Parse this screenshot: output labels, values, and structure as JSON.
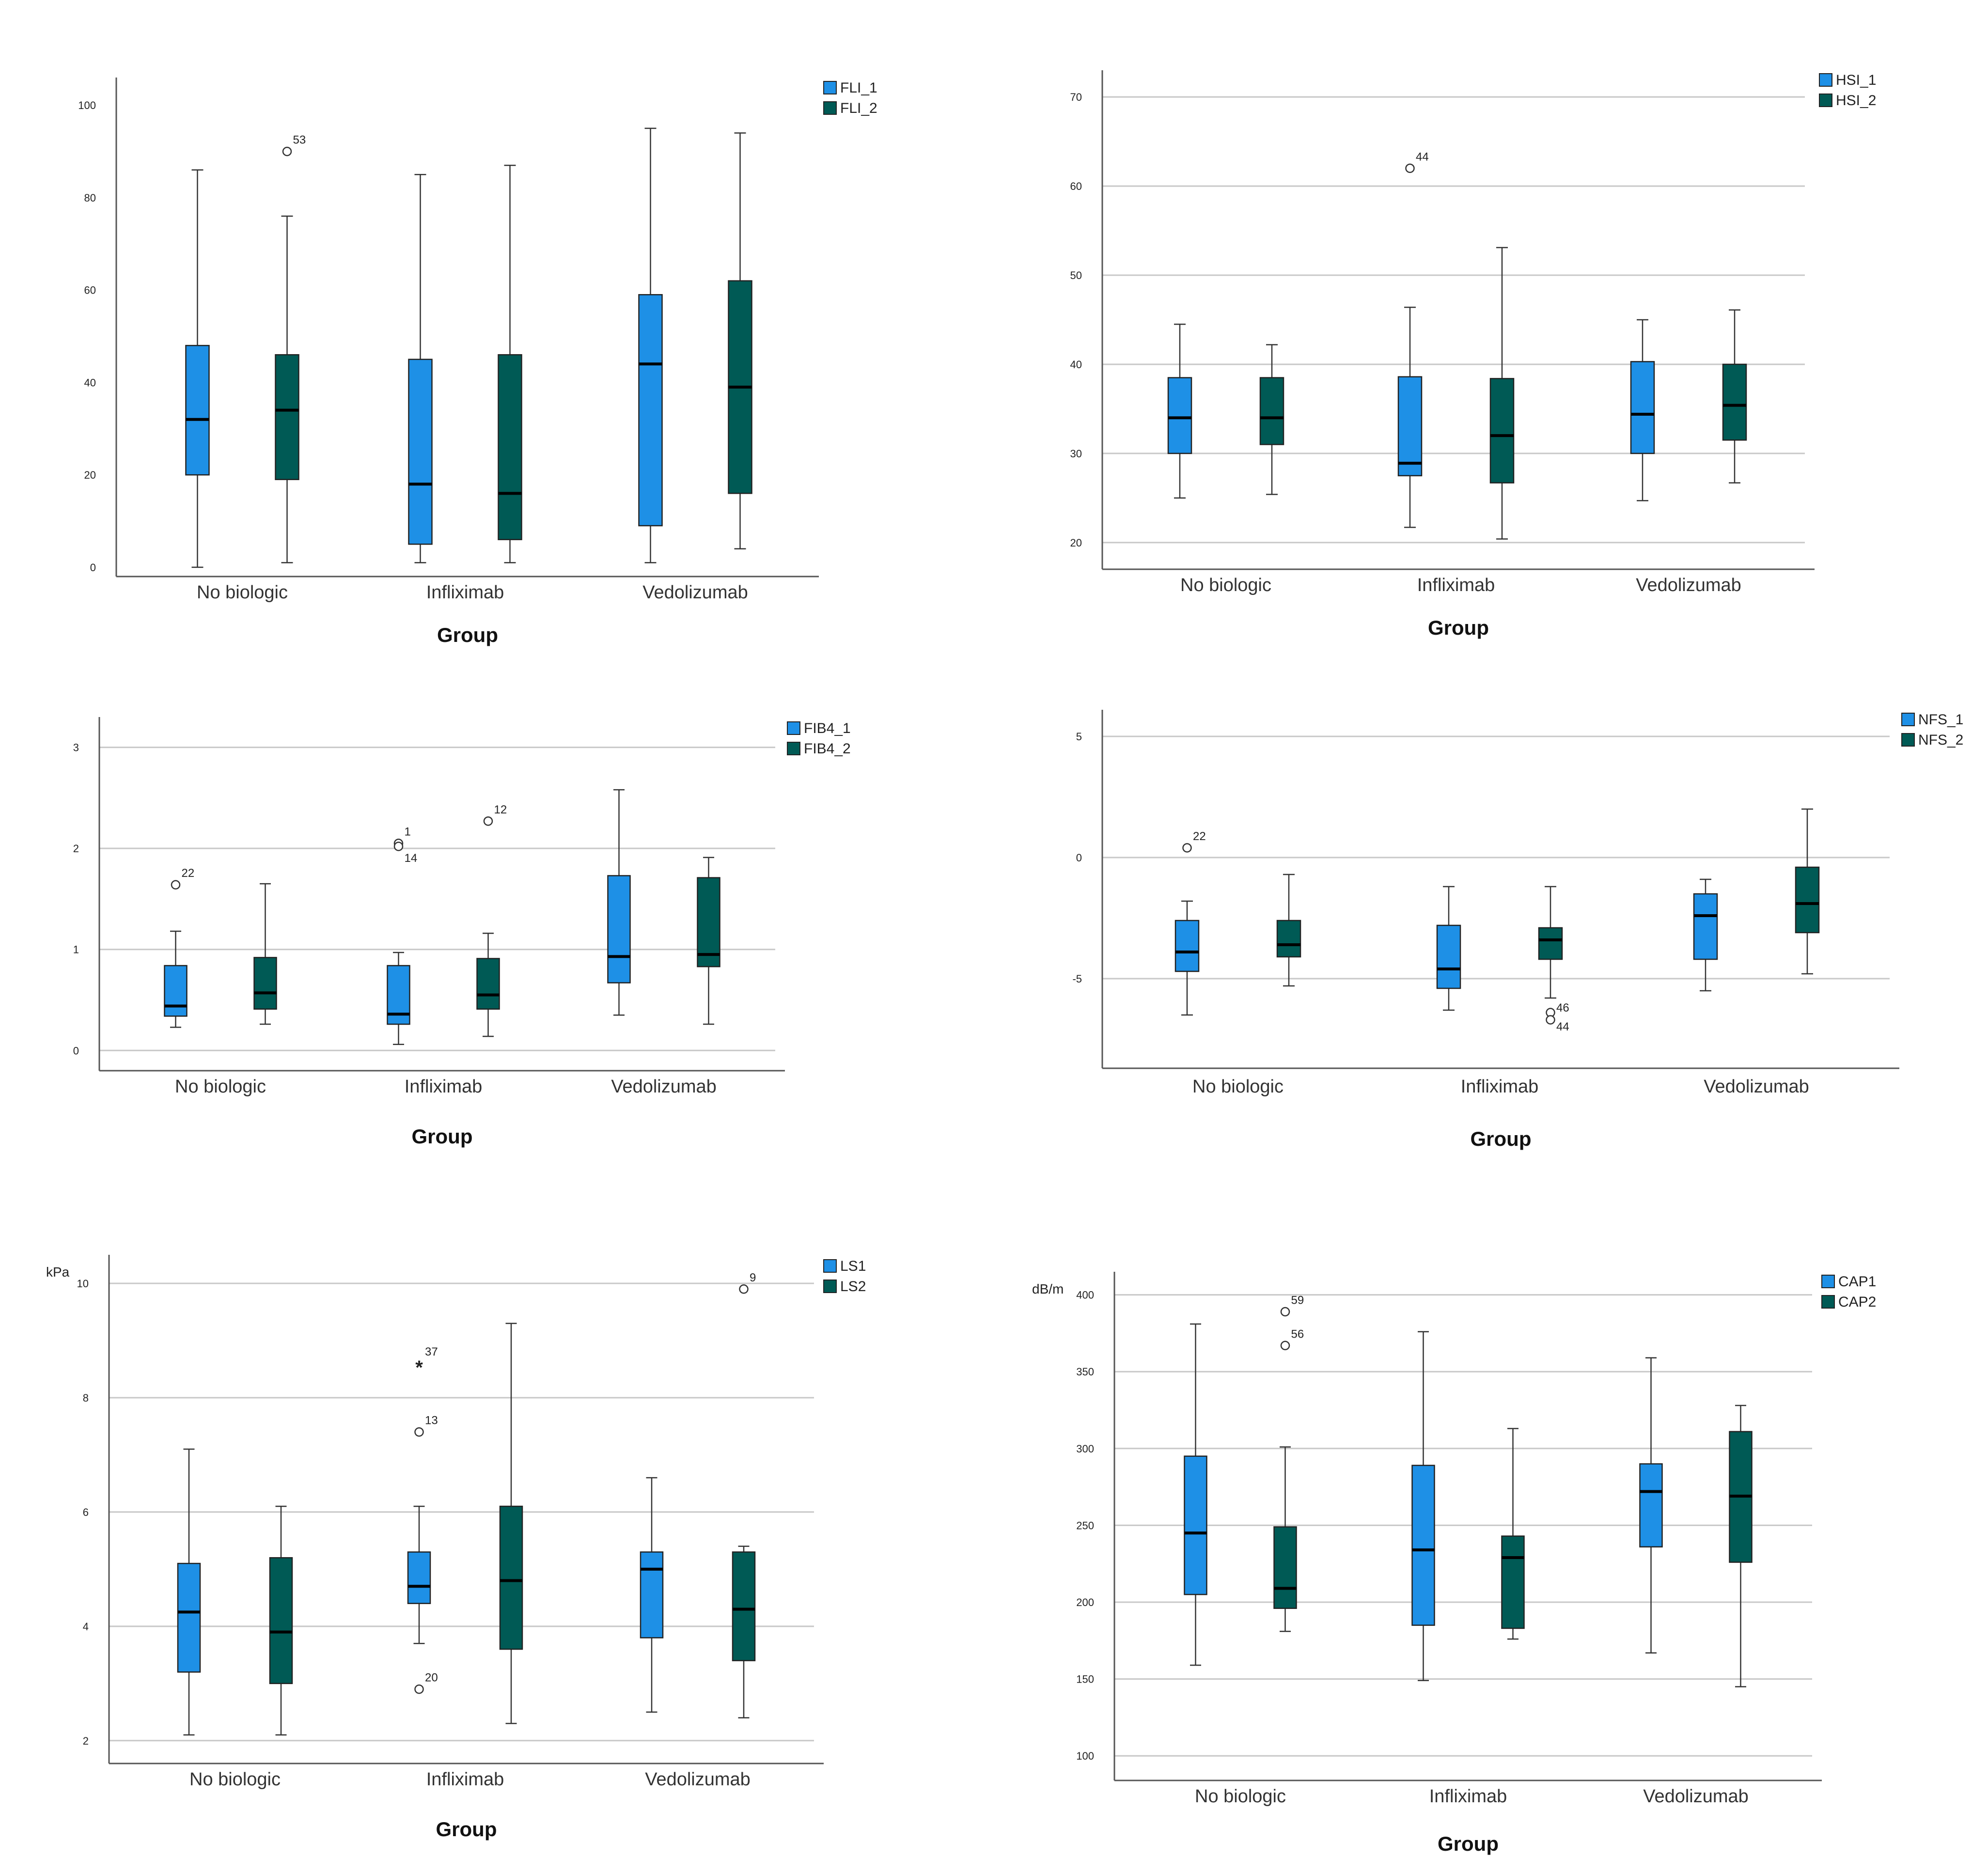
{
  "colors": {
    "series1": "#1e90e6",
    "series2": "#005a55",
    "grid": "#c8c8c8",
    "axis": "#555555"
  },
  "chart_data": [
    {
      "type": "boxplot",
      "xlabel": "Group",
      "ylabel": "",
      "categories": [
        "No biologic",
        "Infliximab",
        "Vedolizumab"
      ],
      "ylim": [
        -2,
        106
      ],
      "ticks": [
        0,
        20,
        40,
        60,
        80,
        100
      ],
      "grid": false,
      "legend_placement": "top-right",
      "series": [
        {
          "name": "FLI_1",
          "boxes": [
            {
              "min": 0,
              "q1": 20,
              "median": 32,
              "q3": 48,
              "max": 86,
              "outliers": []
            },
            {
              "min": 1,
              "q1": 5,
              "median": 18,
              "q3": 45,
              "max": 85,
              "outliers": []
            },
            {
              "min": 1,
              "q1": 9,
              "median": 44,
              "q3": 59,
              "max": 95,
              "outliers": []
            }
          ]
        },
        {
          "name": "FLI_2",
          "boxes": [
            {
              "min": 1,
              "q1": 19,
              "median": 34,
              "q3": 46,
              "max": 76,
              "outliers": [
                {
                  "value": 90,
                  "label": "53",
                  "marker": "circle"
                }
              ]
            },
            {
              "min": 1,
              "q1": 6,
              "median": 16,
              "q3": 46,
              "max": 87,
              "outliers": []
            },
            {
              "min": 4,
              "q1": 16,
              "median": 39,
              "q3": 62,
              "max": 94,
              "outliers": []
            }
          ]
        }
      ]
    },
    {
      "type": "boxplot",
      "xlabel": "Group",
      "ylabel": "",
      "categories": [
        "No biologic",
        "Infliximab",
        "Vedolizumab"
      ],
      "ylim": [
        17,
        73
      ],
      "ticks": [
        20,
        30,
        40,
        50,
        60,
        70
      ],
      "grid": true,
      "legend_placement": "top-right",
      "series": [
        {
          "name": "HSI_1",
          "boxes": [
            {
              "min": 25,
              "q1": 30,
              "median": 34,
              "q3": 38.5,
              "max": 44.5,
              "outliers": []
            },
            {
              "min": 21.7,
              "q1": 27.5,
              "median": 28.9,
              "q3": 38.6,
              "max": 46.4,
              "outliers": [
                {
                  "value": 62,
                  "label": "44",
                  "marker": "circle"
                }
              ]
            },
            {
              "min": 24.7,
              "q1": 30,
              "median": 34.4,
              "q3": 40.3,
              "max": 45,
              "outliers": []
            }
          ]
        },
        {
          "name": "HSI_2",
          "boxes": [
            {
              "min": 25.4,
              "q1": 31,
              "median": 34,
              "q3": 38.5,
              "max": 42.2,
              "outliers": []
            },
            {
              "min": 20.4,
              "q1": 26.7,
              "median": 32,
              "q3": 38.4,
              "max": 53.1,
              "outliers": []
            },
            {
              "min": 26.7,
              "q1": 31.5,
              "median": 35.4,
              "q3": 40,
              "max": 46.1,
              "outliers": []
            }
          ]
        }
      ]
    },
    {
      "type": "boxplot",
      "xlabel": "Group",
      "ylabel": "",
      "categories": [
        "No biologic",
        "Infliximab",
        "Vedolizumab"
      ],
      "ylim": [
        -0.2,
        3.3
      ],
      "ticks": [
        0,
        1,
        2,
        3
      ],
      "grid": true,
      "legend_placement": "top-right",
      "series": [
        {
          "name": "FIB4_1",
          "boxes": [
            {
              "min": 0.23,
              "q1": 0.34,
              "median": 0.44,
              "q3": 0.84,
              "max": 1.18,
              "outliers": [
                {
                  "value": 1.64,
                  "label": "22",
                  "marker": "circle"
                }
              ]
            },
            {
              "min": 0.06,
              "q1": 0.26,
              "median": 0.36,
              "q3": 0.84,
              "max": 0.97,
              "outliers": [
                {
                  "value": 2.05,
                  "label": "1",
                  "marker": "circle"
                },
                {
                  "value": 2.02,
                  "label": "14",
                  "marker": "circle"
                }
              ]
            },
            {
              "min": 0.35,
              "q1": 0.67,
              "median": 0.93,
              "q3": 1.73,
              "max": 2.58,
              "outliers": []
            }
          ]
        },
        {
          "name": "FIB4_2",
          "boxes": [
            {
              "min": 0.26,
              "q1": 0.41,
              "median": 0.57,
              "q3": 0.92,
              "max": 1.65,
              "outliers": []
            },
            {
              "min": 0.14,
              "q1": 0.41,
              "median": 0.55,
              "q3": 0.91,
              "max": 1.16,
              "outliers": [
                {
                  "value": 2.27,
                  "label": "12",
                  "marker": "circle"
                }
              ]
            },
            {
              "min": 0.26,
              "q1": 0.83,
              "median": 0.95,
              "q3": 1.71,
              "max": 1.91,
              "outliers": []
            }
          ]
        }
      ]
    },
    {
      "type": "boxplot",
      "xlabel": "Group",
      "ylabel": "",
      "categories": [
        "No biologic",
        "Infliximab",
        "Vedolizumab"
      ],
      "ylim": [
        -8.7,
        6.1
      ],
      "ticks": [
        -5,
        0,
        5
      ],
      "tick_labels": [
        "-5",
        "0",
        "5"
      ],
      "grid": true,
      "legend_placement": "top-right",
      "series": [
        {
          "name": "NFS_1",
          "boxes": [
            {
              "min": -6.5,
              "q1": -4.7,
              "median": -3.9,
              "q3": -2.6,
              "max": -1.8,
              "outliers": [
                {
                  "value": 0.4,
                  "label": "22",
                  "marker": "circle"
                }
              ]
            },
            {
              "min": -6.3,
              "q1": -5.4,
              "median": -4.6,
              "q3": -2.8,
              "max": -1.2,
              "outliers": []
            },
            {
              "min": -5.5,
              "q1": -4.2,
              "median": -2.4,
              "q3": -1.5,
              "max": -0.9,
              "outliers": []
            }
          ]
        },
        {
          "name": "NFS_2",
          "boxes": [
            {
              "min": -5.3,
              "q1": -4.1,
              "median": -3.6,
              "q3": -2.6,
              "max": -0.7,
              "outliers": []
            },
            {
              "min": -5.8,
              "q1": -4.2,
              "median": -3.4,
              "q3": -2.9,
              "max": -1.2,
              "outliers": [
                {
                  "value": -6.4,
                  "label": "46",
                  "marker": "circle"
                },
                {
                  "value": -6.7,
                  "label": "44",
                  "marker": "circle"
                }
              ]
            },
            {
              "min": -4.8,
              "q1": -3.1,
              "median": -1.9,
              "q3": -0.4,
              "max": 2.0,
              "outliers": []
            }
          ]
        }
      ]
    },
    {
      "type": "boxplot",
      "xlabel": "Group",
      "ylabel": "kPa",
      "categories": [
        "No biologic",
        "Infliximab",
        "Vedolizumab"
      ],
      "ylim": [
        1.6,
        10.5
      ],
      "ticks": [
        2,
        4,
        6,
        8,
        10
      ],
      "grid": true,
      "legend_placement": "top-right",
      "series": [
        {
          "name": "LS1",
          "boxes": [
            {
              "min": 2.1,
              "q1": 3.2,
              "median": 4.25,
              "q3": 5.1,
              "max": 7.1,
              "outliers": []
            },
            {
              "min": 3.7,
              "q1": 4.4,
              "median": 4.7,
              "q3": 5.3,
              "max": 6.1,
              "outliers": [
                {
                  "value": 8.6,
                  "label": "37",
                  "marker": "star"
                },
                {
                  "value": 7.4,
                  "label": "13",
                  "marker": "circle"
                },
                {
                  "value": 2.9,
                  "label": "20",
                  "marker": "circle"
                }
              ]
            },
            {
              "min": 2.5,
              "q1": 3.8,
              "median": 5.0,
              "q3": 5.3,
              "max": 6.6,
              "outliers": []
            }
          ]
        },
        {
          "name": "LS2",
          "boxes": [
            {
              "min": 2.1,
              "q1": 3.0,
              "median": 3.9,
              "q3": 5.2,
              "max": 6.1,
              "outliers": []
            },
            {
              "min": 2.3,
              "q1": 3.6,
              "median": 4.8,
              "q3": 6.1,
              "max": 9.3,
              "outliers": []
            },
            {
              "min": 2.4,
              "q1": 3.4,
              "median": 4.3,
              "q3": 5.3,
              "max": 5.4,
              "outliers": [
                {
                  "value": 9.9,
                  "label": "9",
                  "marker": "circle"
                }
              ]
            }
          ]
        }
      ]
    },
    {
      "type": "boxplot",
      "xlabel": "Group",
      "ylabel": "dB/m",
      "categories": [
        "No biologic",
        "Infliximab",
        "Vedolizumab"
      ],
      "ylim": [
        84,
        415
      ],
      "ticks": [
        100,
        150,
        200,
        250,
        300,
        350,
        400
      ],
      "grid": true,
      "legend_placement": "top-right",
      "series": [
        {
          "name": "CAP1",
          "boxes": [
            {
              "min": 159,
              "q1": 205,
              "median": 245,
              "q3": 295,
              "max": 381,
              "outliers": []
            },
            {
              "min": 149,
              "q1": 185,
              "median": 234,
              "q3": 289,
              "max": 376,
              "outliers": []
            },
            {
              "min": 167,
              "q1": 236,
              "median": 272,
              "q3": 290,
              "max": 359,
              "outliers": []
            }
          ]
        },
        {
          "name": "CAP2",
          "boxes": [
            {
              "min": 181,
              "q1": 196,
              "median": 209,
              "q3": 249,
              "max": 301,
              "outliers": [
                {
                  "value": 389,
                  "label": "59",
                  "marker": "circle"
                },
                {
                  "value": 367,
                  "label": "56",
                  "marker": "circle"
                }
              ]
            },
            {
              "min": 176,
              "q1": 183,
              "median": 229,
              "q3": 243,
              "max": 313,
              "outliers": []
            },
            {
              "min": 145,
              "q1": 226,
              "median": 269,
              "q3": 311,
              "max": 328,
              "outliers": []
            }
          ]
        }
      ]
    }
  ]
}
